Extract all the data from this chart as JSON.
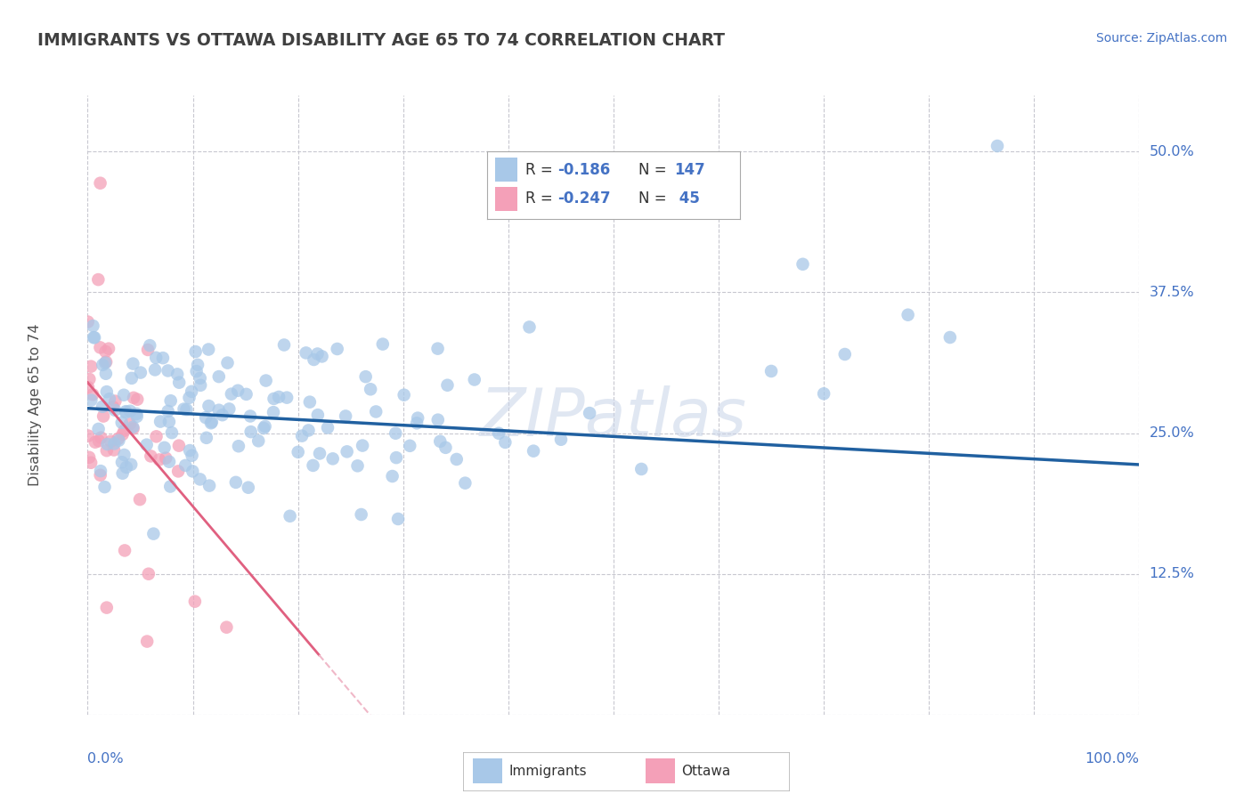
{
  "title": "IMMIGRANTS VS OTTAWA DISABILITY AGE 65 TO 74 CORRELATION CHART",
  "source": "Source: ZipAtlas.com",
  "ylabel": "Disability Age 65 to 74",
  "xlim": [
    0.0,
    1.0
  ],
  "ylim": [
    0.0,
    0.55
  ],
  "ytick_positions": [
    0.0,
    0.125,
    0.25,
    0.375,
    0.5
  ],
  "ytick_labels": [
    "",
    "12.5%",
    "25.0%",
    "37.5%",
    "50.0%"
  ],
  "blue_R": "-0.186",
  "blue_N": "147",
  "pink_R": "-0.247",
  "pink_N": "45",
  "blue_color": "#A8C8E8",
  "pink_color": "#F4A0B8",
  "blue_line_color": "#2060A0",
  "pink_line_color": "#E06080",
  "pink_dash_color": "#F0B8C8",
  "watermark": "ZIPatlas",
  "background_color": "#FFFFFF",
  "grid_color": "#C8C8D0",
  "title_color": "#404040",
  "source_color": "#4472C4",
  "axis_label_color": "#4472C4",
  "ylabel_color": "#505050"
}
